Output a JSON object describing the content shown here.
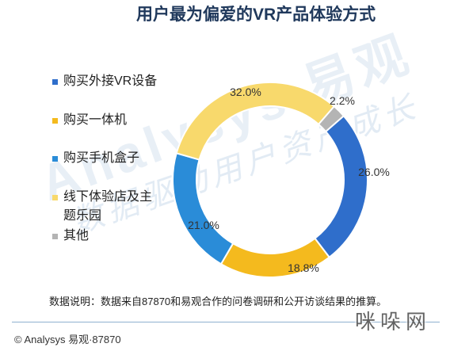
{
  "chart_data": {
    "type": "pie",
    "donut": true,
    "title": "用户最为偏爱的VR产品体验方式",
    "legend_position": "left",
    "slices": [
      {
        "name": "购买外接VR设备",
        "value": 26.0,
        "label": "26.0%",
        "color": "#2F6ECB"
      },
      {
        "name": "购买一体机",
        "value": 18.8,
        "label": "18.8%",
        "color": "#F4BA1E"
      },
      {
        "name": "购买手机盒子",
        "value": 21.0,
        "label": "21.0%",
        "color": "#2A8CD8"
      },
      {
        "name": "线下体验店及主题乐园",
        "value": 32.0,
        "label": "32.0%",
        "color": "#F8D96C"
      },
      {
        "name": "其他",
        "value": 2.2,
        "label": "2.2%",
        "color": "#B4B4B4"
      }
    ]
  },
  "note": "数据说明：数据来自87870和易观合作的问卷调研和公开访谈结果的推算。",
  "footer": {
    "copyright": "© Analysys 易观·87870"
  },
  "watermark": {
    "brand": "Analysys 易观",
    "slogan": "数据驱动用户资产成长",
    "site": "咪哚网"
  }
}
